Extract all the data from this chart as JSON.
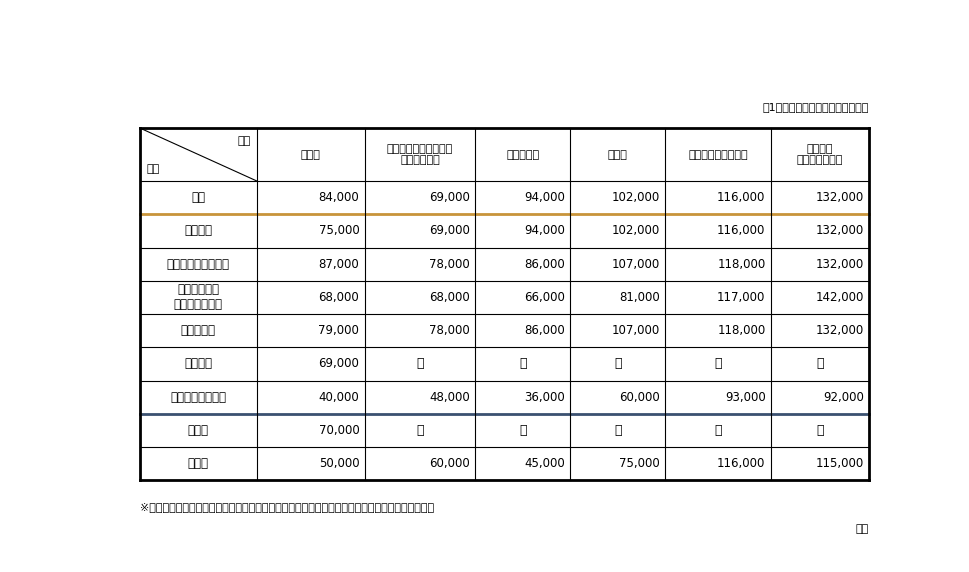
{
  "title_top_right": "（1平方メートル単価・単位：円）",
  "header_diagonal_top": "構造",
  "header_diagonal_bottom": "種類",
  "columns": [
    "木　造",
    "れんが造・コンクリー\nトブロック造",
    "軽量鉄骨造",
    "鉄骨造",
    "鉄筋コンクリート造",
    "鉄骨鉄筋\nコンクリート造"
  ],
  "rows": [
    {
      "label": "居宅",
      "values": [
        "84,000",
        "69,000",
        "94,000",
        "102,000",
        "116,000",
        "132,000"
      ]
    },
    {
      "label": "共同住宅",
      "values": [
        "75,000",
        "69,000",
        "94,000",
        "102,000",
        "116,000",
        "132,000"
      ]
    },
    {
      "label": "旅館・料亭・ホテル",
      "values": [
        "87,000",
        "78,000",
        "86,000",
        "107,000",
        "118,000",
        "132,000"
      ]
    },
    {
      "label": "店舗・事務所\n・百貨店・銀行",
      "values": [
        "68,000",
        "68,000",
        "66,000",
        "81,000",
        "117,000",
        "142,000"
      ]
    },
    {
      "label": "劇場・病院",
      "values": [
        "79,000",
        "78,000",
        "86,000",
        "107,000",
        "118,000",
        "132,000"
      ]
    },
    {
      "label": "公衆浴場",
      "values": [
        "69,000",
        "－",
        "－",
        "－",
        "－",
        "－"
      ]
    },
    {
      "label": "工場・倉庫・市場",
      "values": [
        "40,000",
        "48,000",
        "36,000",
        "60,000",
        "93,000",
        "92,000"
      ]
    },
    {
      "label": "土　蔵",
      "values": [
        "70,000",
        "－",
        "－",
        "－",
        "－",
        "－"
      ]
    },
    {
      "label": "附属家",
      "values": [
        "50,000",
        "60,000",
        "45,000",
        "75,000",
        "116,000",
        "115,000"
      ]
    }
  ],
  "footnote": "※　本基準により難い場合は，類似する建物との均衡を考慮し個別具体的に認定することとする。",
  "footer_right": "静岡",
  "border_color_normal": "#000000",
  "border_color_thick": "#c8a050",
  "border_color_thick_dark": "#3a5070",
  "thick_bottom_after_rows": [
    0,
    1,
    2,
    3,
    4,
    5,
    6,
    7
  ],
  "orange_thick_after_rows": [
    0
  ],
  "dark_thick_after_rows": [
    6
  ],
  "background_color": "#ffffff",
  "text_color": "#000000",
  "outer_border_lw": 2.0,
  "inner_border_lw": 0.8,
  "orange_lw": 2.0,
  "dark_blue_lw": 2.0
}
